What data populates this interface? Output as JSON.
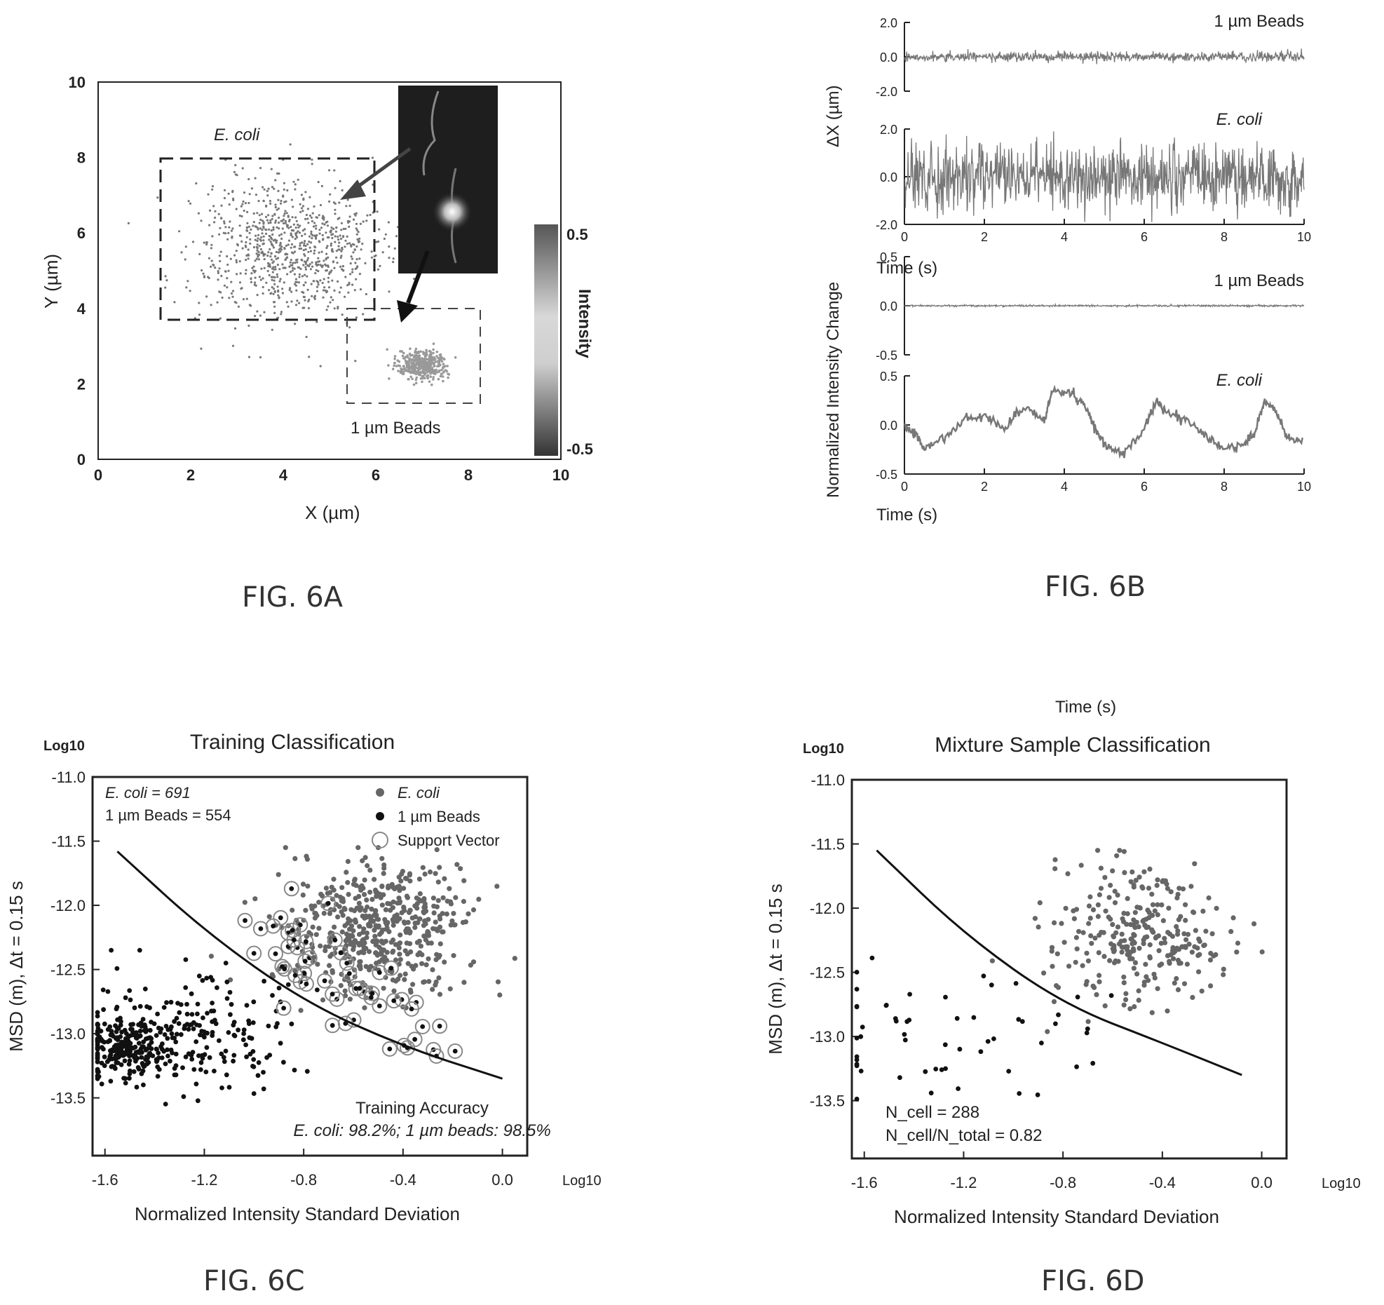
{
  "captions": {
    "a": "FIG. 6A",
    "b": "FIG. 6B",
    "c": "FIG. 6C",
    "d": "FIG. 6D"
  },
  "colors": {
    "axis": "#222222",
    "ecoli": "#666666",
    "beads": "#111111",
    "trace": "#777777",
    "support": "#888888"
  },
  "chart_data": [
    {
      "id": "fig6a",
      "type": "scatter",
      "xlabel": "X (µm)",
      "ylabel": "Y (µm)",
      "xlim": [
        0,
        10
      ],
      "ylim": [
        0,
        10
      ],
      "xticks": [
        "0",
        "2",
        "4",
        "6",
        "8",
        "10"
      ],
      "yticks": [
        "0",
        "2",
        "4",
        "6",
        "8",
        "10"
      ],
      "annotations": {
        "ecoli": "E. coli",
        "beads": "1 µm Beads"
      },
      "series": [
        {
          "name": "E. coli",
          "center": [
            4.1,
            5.6
          ],
          "spread": 1.1
        },
        {
          "name": "1 µm Beads",
          "center": [
            7.0,
            2.5
          ],
          "spread": 0.3
        }
      ],
      "colorbar": {
        "label": "Intensity",
        "max": "0.5",
        "min": "-0.5"
      },
      "inset": "fluorescence image of E. coli and bead"
    },
    {
      "id": "fig6b",
      "type": "line",
      "xlabel": "Time (s)",
      "xlim": [
        0,
        10
      ],
      "xticks": [
        "0",
        "2",
        "4",
        "6",
        "8",
        "10"
      ],
      "panels": [
        {
          "group": "ΔX (µm)",
          "name": "1 µm Beads",
          "ylim": [
            -2.0,
            2.0
          ],
          "yticks": [
            "2.0",
            "0.0",
            "-2.0"
          ],
          "amplitude": 0.3
        },
        {
          "group": "ΔX (µm)",
          "name": "E. coli",
          "ylim": [
            -2.0,
            2.0
          ],
          "yticks": [
            "2.0",
            "0.0",
            "-2.0"
          ],
          "amplitude": 1.5
        },
        {
          "group": "Normalized Intensity Change",
          "name": "1 µm Beads",
          "ylim": [
            -0.5,
            0.5
          ],
          "yticks": [
            "0.5",
            "0.0",
            "-0.5"
          ],
          "amplitude": 0.01
        },
        {
          "group": "Normalized Intensity Change",
          "name": "E. coli",
          "ylim": [
            -0.5,
            0.5
          ],
          "yticks": [
            "0.5",
            "0.0",
            "-0.5"
          ],
          "x": [
            0,
            0.3,
            0.5,
            1.0,
            1.5,
            2.0,
            2.5,
            3.0,
            3.5,
            3.7,
            4.2,
            4.5,
            4.8,
            5.0,
            5.5,
            6.0,
            6.3,
            6.5,
            7.0,
            7.5,
            8.0,
            8.5,
            8.8,
            9.0,
            9.3,
            9.6,
            10.0
          ],
          "values": [
            0.0,
            -0.1,
            -0.25,
            -0.12,
            0.05,
            0.1,
            -0.05,
            0.2,
            0.05,
            0.35,
            0.33,
            0.2,
            -0.05,
            -0.2,
            -0.3,
            -0.05,
            0.25,
            0.15,
            0.05,
            -0.1,
            -0.25,
            -0.2,
            -0.05,
            0.25,
            0.15,
            -0.15,
            -0.15
          ]
        }
      ],
      "extra_label": "Time (s)"
    },
    {
      "id": "fig6c",
      "type": "scatter",
      "title": "Training Classification",
      "xlabel": "Normalized Intensity Standard Deviation",
      "ylabel": "MSD (m), Δt = 0.15 s",
      "xunit": "Log10",
      "yunit": "Log10",
      "xlim": [
        -1.65,
        0.1
      ],
      "ylim": [
        -13.95,
        -11.0
      ],
      "xticks": [
        "-1.6",
        "-1.2",
        "-0.8",
        "-0.4",
        "0.0"
      ],
      "yticks": [
        "-11.0",
        "-11.5",
        "-12.0",
        "-12.5",
        "-13.0",
        "-13.5"
      ],
      "legend": [
        "E. coli",
        "1 µm Beads",
        "Support Vector"
      ],
      "legend_position": "top-right",
      "counts": [
        "E. coli  = 691",
        "1 µm Beads = 554"
      ],
      "accuracy": {
        "title": "Training Accuracy",
        "text": "E. coli: 98.2%; 1 µm beads: 98.5%"
      },
      "boundary": {
        "x": [
          -1.55,
          -1.2,
          -0.8,
          -0.4,
          0.0
        ],
        "y": [
          -11.58,
          -12.2,
          -12.75,
          -13.1,
          -13.35
        ]
      },
      "series": [
        {
          "name": "E. coli",
          "n": 691,
          "center": [
            -0.5,
            -12.2
          ],
          "spread": [
            0.18,
            0.25
          ]
        },
        {
          "name": "1 µm Beads",
          "n": 554,
          "center": [
            -1.45,
            -13.1
          ],
          "spread": [
            0.2,
            0.15
          ]
        }
      ]
    },
    {
      "id": "fig6d",
      "type": "scatter",
      "title": "Mixture Sample Classification",
      "title_above": "Time (s)",
      "xlabel": "Normalized Intensity Standard Deviation",
      "ylabel": "MSD (m), Δt = 0.15 s",
      "xunit": "Log10",
      "yunit": "Log10",
      "xlim": [
        -1.65,
        0.1
      ],
      "ylim": [
        -13.95,
        -11.0
      ],
      "xticks": [
        "-1.6",
        "-1.2",
        "-0.8",
        "-0.4",
        "0.0"
      ],
      "yticks": [
        "-11.0",
        "-11.5",
        "-12.0",
        "-12.5",
        "-13.0",
        "-13.5"
      ],
      "stats": [
        "N_cell = 288",
        "N_cell/N_total = 0.82"
      ],
      "boundary": {
        "x": [
          -1.55,
          -1.2,
          -0.8,
          -0.4,
          -0.08
        ],
        "y": [
          -11.55,
          -12.2,
          -12.75,
          -13.05,
          -13.3
        ]
      },
      "series": [
        {
          "name": "E. coli",
          "n": 288,
          "center": [
            -0.5,
            -12.2
          ],
          "spread": [
            0.18,
            0.25
          ]
        },
        {
          "name": "1 µm Beads",
          "n": 60,
          "center": [
            -1.1,
            -13.0
          ],
          "spread": [
            0.4,
            0.3
          ]
        }
      ]
    }
  ]
}
